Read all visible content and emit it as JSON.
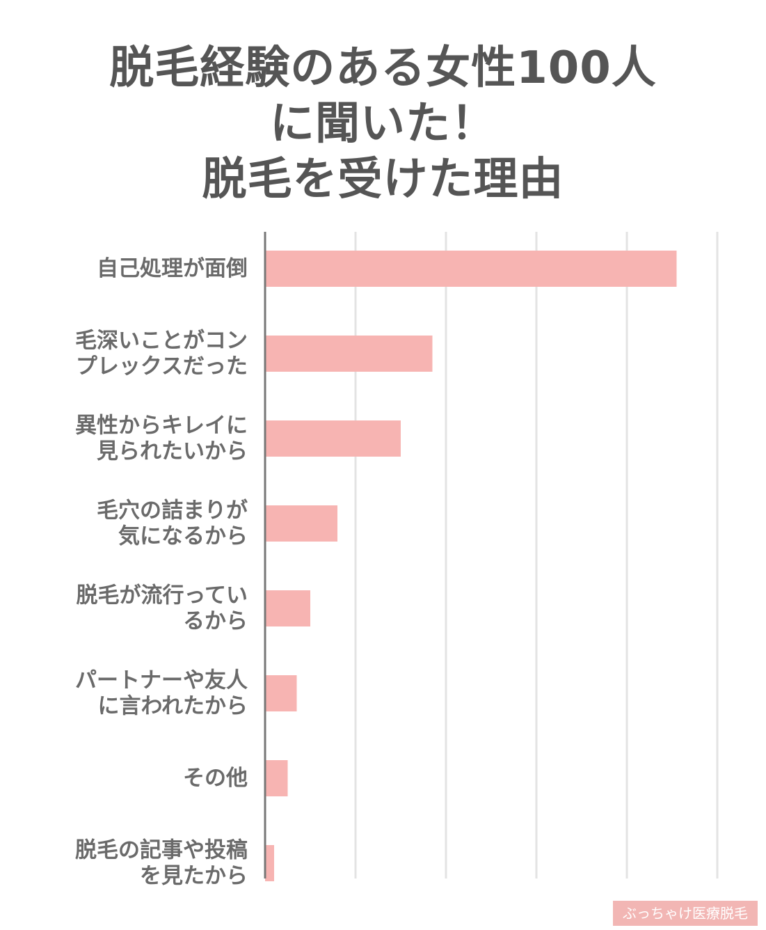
{
  "title_lines": [
    "脱毛経験のある女性100人",
    "に聞いた！",
    "脱毛を受けた理由"
  ],
  "chart_data": {
    "type": "bar",
    "orientation": "horizontal",
    "title": "脱毛経験のある女性100人に聞いた！脱毛を受けた理由",
    "categories": [
      [
        "自己処理が面倒"
      ],
      [
        "毛深いことがコン",
        "プレックスだった"
      ],
      [
        "異性からキレイに",
        "見られたいから"
      ],
      [
        "毛穴の詰まりが",
        "気になるから"
      ],
      [
        "脱毛が流行ってい",
        "るから"
      ],
      [
        "パートナーや友人",
        "に言われたから"
      ],
      [
        "その他"
      ],
      [
        "脱毛の記事や投稿",
        "を見たから"
      ]
    ],
    "values": [
      91,
      37,
      30,
      16,
      10,
      7,
      5,
      2
    ],
    "xlim": [
      0,
      100
    ],
    "grid": true,
    "gridlines": [
      0,
      20,
      40,
      60,
      80,
      100
    ],
    "bar_color": "#f7b4b2",
    "grid_color": "#e3e3e3",
    "axis_color": "#777777"
  },
  "watermark": "ぶっちゃけ医療脱毛"
}
